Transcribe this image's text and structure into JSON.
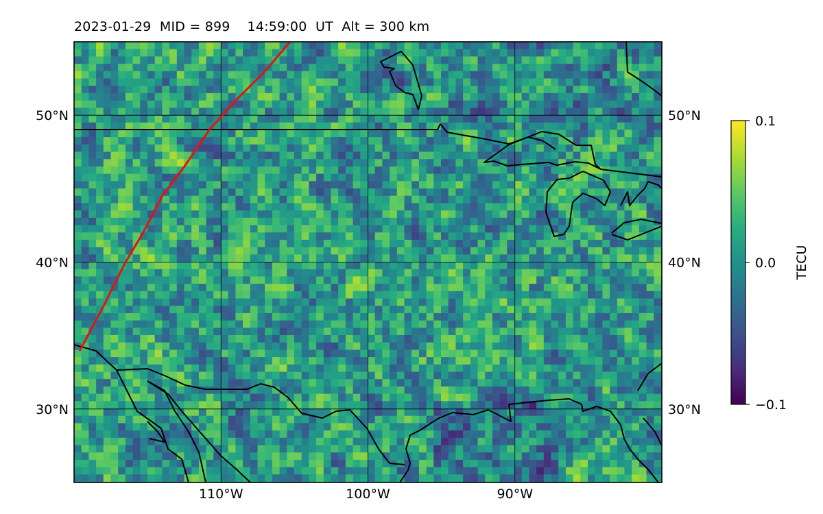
{
  "title": "2023-01-29  MID = 899    14:59:00  UT  Alt = 300 km",
  "map": {
    "lon_range": [
      -120,
      -80
    ],
    "lat_range": [
      25,
      55
    ],
    "lat_ticks": [
      {
        "value": 50,
        "label": "50°N"
      },
      {
        "value": 40,
        "label": "40°N"
      },
      {
        "value": 30,
        "label": "30°N"
      }
    ],
    "lon_ticks": [
      {
        "value": -110,
        "label": "110°W"
      },
      {
        "value": -100,
        "label": "100°W"
      },
      {
        "value": -90,
        "label": "90°W"
      }
    ],
    "field": "detrended TEC perturbation map, viridis colormap, values mostly near 0.0 with scattered positive (yellow) and negative (purple) patches"
  },
  "terminator": {
    "color": "#e8120c",
    "points": [
      [
        -119.6,
        34.0
      ],
      [
        -118.0,
        37.0
      ],
      [
        -116.5,
        40.0
      ],
      [
        -115.3,
        42.0
      ],
      [
        -114.0,
        44.5
      ],
      [
        -112.5,
        46.5
      ],
      [
        -110.8,
        49.0
      ],
      [
        -109.0,
        51.0
      ],
      [
        -107.0,
        53.0
      ],
      [
        -105.3,
        55.0
      ]
    ]
  },
  "colorbar": {
    "label": "TECU",
    "colormap": "viridis",
    "min": -0.1,
    "max": 0.1,
    "ticks": [
      {
        "value": 0.1,
        "label": "0.1"
      },
      {
        "value": 0.0,
        "label": "0.0"
      },
      {
        "value": -0.1,
        "label": "−0.1"
      }
    ]
  }
}
